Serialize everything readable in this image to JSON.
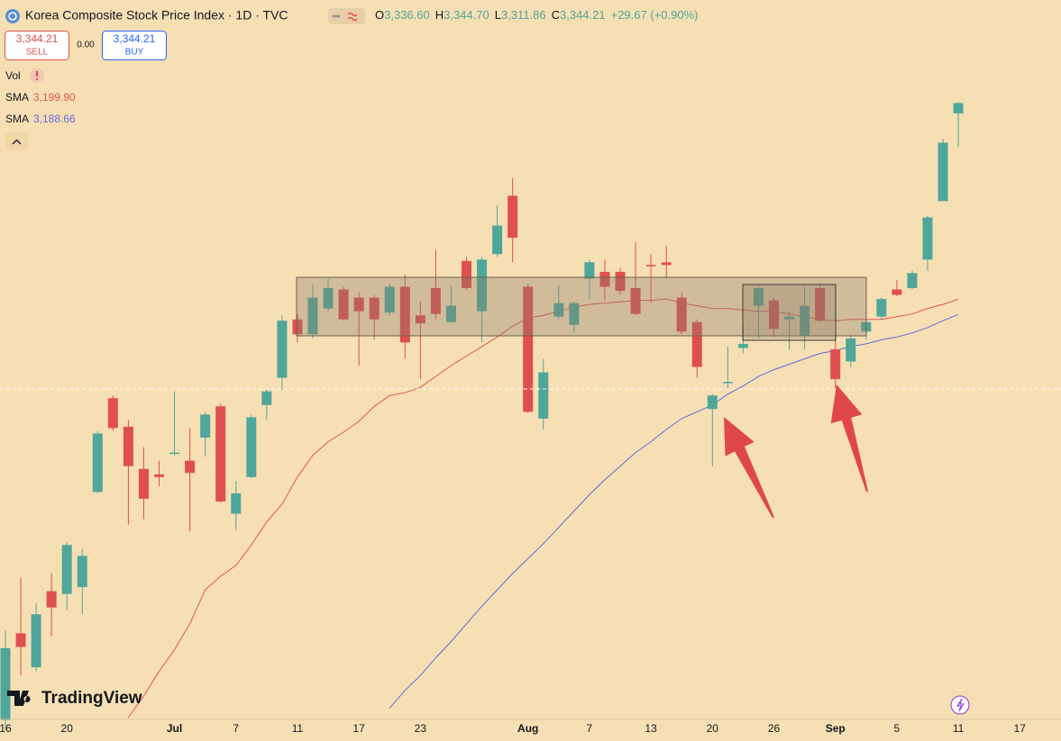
{
  "header": {
    "title": "Korea Composite Stock Price Index · 1D · TVC",
    "ohlc": [
      {
        "label": "O",
        "value": "3,336.60"
      },
      {
        "label": "H",
        "value": "3,344.70"
      },
      {
        "label": "L",
        "value": "3,311.86"
      },
      {
        "label": "C",
        "value": "3,344.21"
      }
    ],
    "change": "+29.67 (+0.90%)"
  },
  "trade": {
    "sell_price": "3,344.21",
    "sell": "SELL",
    "spread": "0.00",
    "buy_price": "3,344.21",
    "buy": "BUY"
  },
  "indicators": [
    {
      "name": "Vol"
    },
    {
      "name": "SMA",
      "value": "3,199.90"
    },
    {
      "name": "SMA",
      "value": "3,188.66"
    }
  ],
  "branding": "TradingView",
  "chart_data": {
    "type": "candlestick",
    "categories": [
      "16",
      null,
      null,
      null,
      "20",
      null,
      null,
      null,
      null,
      null,
      null,
      "Jul",
      null,
      null,
      null,
      "7",
      null,
      null,
      null,
      "11",
      null,
      null,
      null,
      "17",
      null,
      null,
      null,
      "23",
      null,
      null,
      null,
      null,
      null,
      null,
      "Aug",
      null,
      null,
      null,
      "7",
      null,
      null,
      null,
      "13",
      null,
      null,
      null,
      "20",
      null,
      null,
      null,
      "26",
      null,
      null,
      null,
      "Sep",
      null,
      null,
      null,
      "5",
      null,
      null,
      null,
      "11",
      null,
      null,
      null,
      "17"
    ],
    "open": [
      2890,
      2954,
      2929,
      2985,
      2983,
      2988,
      3058,
      3127,
      3106,
      3075,
      3071,
      3086,
      3081,
      3098,
      3121,
      3042,
      3069,
      3122,
      3142,
      3185,
      3174,
      3193,
      3207,
      3201,
      3201,
      3190,
      3209,
      3188,
      3208,
      3183,
      3228,
      3191,
      3233,
      3276,
      3209,
      3112,
      3187,
      3181,
      3215,
      3220,
      3220,
      3208,
      3225,
      3227,
      3201,
      3183,
      3119,
      3138,
      3164,
      3195,
      3199,
      3185,
      3173,
      3208,
      3163,
      3154,
      3176,
      3187,
      3207,
      3208,
      3229,
      3272,
      3336.6,
      null,
      null,
      null,
      null
    ],
    "high": [
      2956,
      2995,
      2976,
      2998,
      3021,
      3016,
      3103,
      3129,
      3111,
      3091,
      3081,
      3132,
      3105,
      3117,
      3123,
      3066,
      3115,
      3134,
      3188,
      3189,
      3211,
      3215,
      3209,
      3205,
      3203,
      3211,
      3218,
      3198,
      3236,
      3210,
      3231,
      3231,
      3269,
      3289,
      3211,
      3156,
      3210,
      3198,
      3229,
      3229,
      3223,
      3242,
      3233,
      3239,
      3205,
      3185,
      3130,
      3165,
      3182,
      3211,
      3201,
      3191,
      3209,
      3211,
      3172,
      3174,
      3185,
      3201,
      3214,
      3221,
      3261,
      3318,
      3344.7,
      null,
      null,
      null,
      null
    ],
    "low": [
      2883,
      2923,
      2926,
      2952,
      2971,
      2968,
      3057,
      3103,
      3034,
      3038,
      3062,
      3085,
      3029,
      3084,
      3050,
      3030,
      3068,
      3111,
      3133,
      3168,
      3171,
      3191,
      3184,
      3151,
      3170,
      3188,
      3156,
      3141,
      3185,
      3182,
      3207,
      3168,
      3231,
      3227,
      3116,
      3104,
      3185,
      3175,
      3200,
      3199,
      3203,
      3188,
      3197,
      3215,
      3174,
      3142,
      3077,
      3134,
      3160,
      3171,
      3172,
      3163,
      3163,
      3183,
      3134,
      3150,
      3170,
      3185,
      3202,
      3207,
      3221,
      3272,
      3311.86,
      null,
      null,
      null,
      null
    ],
    "close": [
      2943,
      2944,
      2968,
      2973,
      3019,
      3011,
      3101,
      3105,
      3077,
      3053,
      3069,
      3087,
      3072,
      3115,
      3051,
      3057,
      3113,
      3132,
      3184,
      3174,
      3201,
      3208,
      3185,
      3191,
      3185,
      3209,
      3168,
      3182,
      3189,
      3195,
      3208,
      3229,
      3254,
      3245,
      3117,
      3146,
      3197,
      3197,
      3227,
      3209,
      3206,
      3189,
      3224,
      3225,
      3176,
      3150,
      3129,
      3139,
      3167,
      3208,
      3178,
      3187,
      3195,
      3184,
      3141,
      3171,
      3183,
      3200,
      3203,
      3219,
      3260,
      3315,
      3344.21,
      null,
      null,
      null,
      null
    ],
    "up_color": "#4fa69a",
    "down_color": "#df4f4f",
    "lines": [
      {
        "name": "SMA",
        "color": "#e0574d",
        "values": [
          null,
          null,
          null,
          null,
          null,
          null,
          null,
          null,
          2892,
          2908,
          2926,
          2942,
          2961,
          2986,
          2996,
          3004,
          3019,
          3036,
          3049,
          3069,
          3085,
          3095,
          3102,
          3110,
          3121,
          3129,
          3131,
          3135,
          3143,
          3151,
          3158,
          3165,
          3172,
          3180,
          3186,
          3188,
          3191,
          3194,
          3196,
          3197,
          3198,
          3199,
          3199,
          3200,
          3197,
          3195,
          3193,
          3193,
          3192,
          3191,
          3191,
          3189,
          3187,
          3185,
          3184,
          3185,
          3185,
          3185,
          3187,
          3189,
          3193,
          3196,
          3199.9,
          null,
          null,
          null,
          null
        ]
      },
      {
        "name": "SMA",
        "color": "#5a6be0",
        "values": [
          null,
          null,
          null,
          null,
          null,
          null,
          null,
          null,
          null,
          null,
          null,
          null,
          null,
          null,
          null,
          null,
          null,
          null,
          null,
          null,
          null,
          null,
          null,
          null,
          null,
          2899,
          2912,
          2923,
          2936,
          2948,
          2961,
          2974,
          2986,
          2998,
          3009,
          3020,
          3032,
          3044,
          3056,
          3067,
          3077,
          3087,
          3095,
          3104,
          3112,
          3117,
          3122,
          3130,
          3136,
          3143,
          3148,
          3152,
          3156,
          3160,
          3162,
          3165,
          3167,
          3170,
          3172,
          3175,
          3179,
          3184,
          3188.66,
          null,
          null,
          null,
          null
        ]
      }
    ],
    "ylim": [
      2890,
      3420
    ]
  }
}
